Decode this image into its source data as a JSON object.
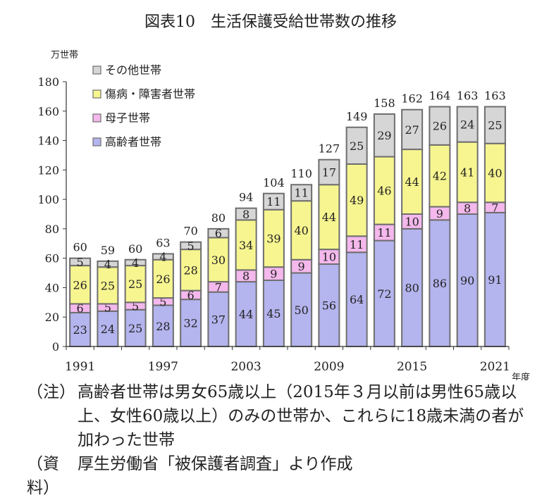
{
  "chart_data": {
    "type": "bar",
    "stacked": true,
    "title": "図表10　生活保護受給世帯数の推移",
    "ylabel": "万世帯",
    "xlabel": "年度",
    "ylim": [
      0,
      180
    ],
    "yticks": [
      0,
      20,
      40,
      60,
      80,
      100,
      120,
      140,
      160,
      180
    ],
    "grid": false,
    "legend_position": "top-left",
    "categories": [
      "1991",
      "1993",
      "1995",
      "1997",
      "1999",
      "2001",
      "2003",
      "2005",
      "2007",
      "2009",
      "2011",
      "2013",
      "2015",
      "2017",
      "2019",
      "2021"
    ],
    "x_tick_labels": [
      "1991",
      "1997",
      "2003",
      "2009",
      "2015",
      "2021"
    ],
    "series": [
      {
        "name": "高齢者世帯",
        "color": "#b4b4ee",
        "values": [
          23,
          24,
          25,
          28,
          32,
          37,
          44,
          45,
          50,
          56,
          64,
          72,
          80,
          86,
          90,
          91
        ]
      },
      {
        "name": "母子世帯",
        "color": "#f4b8ec",
        "values": [
          6,
          5,
          5,
          5,
          6,
          7,
          8,
          9,
          9,
          10,
          11,
          11,
          10,
          9,
          8,
          7
        ]
      },
      {
        "name": "傷病・障害者世帯",
        "color": "#f7f590",
        "values": [
          26,
          25,
          25,
          26,
          28,
          30,
          34,
          39,
          40,
          44,
          49,
          46,
          44,
          42,
          41,
          40
        ]
      },
      {
        "name": "その他世帯",
        "color": "#d6d6d6",
        "values": [
          5,
          4,
          4,
          4,
          5,
          6,
          8,
          11,
          11,
          17,
          25,
          29,
          27,
          26,
          24,
          25
        ]
      }
    ],
    "totals": [
      60,
      59,
      60,
      63,
      70,
      80,
      94,
      104,
      110,
      127,
      149,
      158,
      162,
      164,
      163,
      163
    ]
  },
  "notes": [
    {
      "label": "（注）",
      "text": "高齢者世帯は男女65歳以上（2015年３月以前は男性65歳以上、女性60歳以上）のみの世帯か、これらに18歳未満の者が加わった世帯"
    },
    {
      "label": "（資料）",
      "text": "厚生労働省「被保護者調査」より作成"
    }
  ]
}
